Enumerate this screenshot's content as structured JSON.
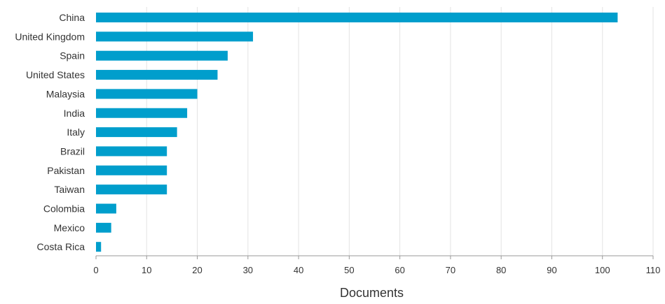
{
  "chart_data": {
    "type": "bar",
    "orientation": "horizontal",
    "categories": [
      "China",
      "United Kingdom",
      "Spain",
      "United States",
      "Malaysia",
      "India",
      "Italy",
      "Brazil",
      "Pakistan",
      "Taiwan",
      "Colombia",
      "Mexico",
      "Costa Rica"
    ],
    "values": [
      103,
      31,
      26,
      24,
      20,
      18,
      16,
      14,
      14,
      14,
      4,
      3,
      1
    ],
    "xlabel": "Documents",
    "ylabel": "",
    "xlim": [
      0,
      110
    ],
    "xticks": [
      0,
      10,
      20,
      30,
      40,
      50,
      60,
      70,
      80,
      90,
      100,
      110
    ],
    "bar_color": "#009ecc",
    "grid": "vertical",
    "legend": "none"
  }
}
